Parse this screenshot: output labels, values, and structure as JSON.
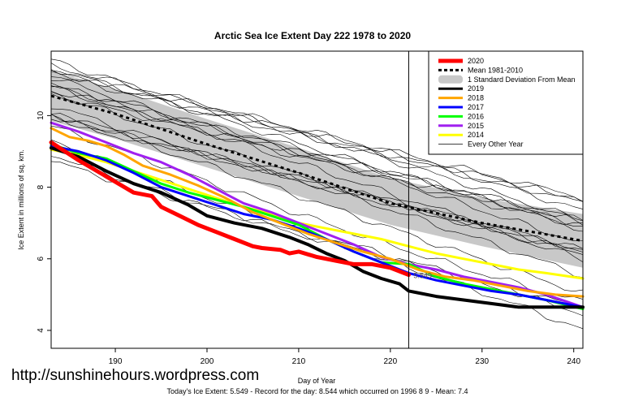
{
  "chart_data": {
    "type": "line",
    "title": "Arctic Sea Ice Extent Day 222 1978 to 2020",
    "xlabel": "Day of Year",
    "ylabel": "Ice Extent in millions of sq. km.",
    "xlim": [
      183,
      241
    ],
    "ylim": [
      3.5,
      11.8
    ],
    "xticks": [
      190,
      200,
      210,
      220,
      230,
      240
    ],
    "yticks": [
      4,
      6,
      8,
      10
    ],
    "current_day": 222,
    "current_value_label": "5.549",
    "legend_position": "top-right",
    "grid": false,
    "legend": [
      {
        "label": "2020",
        "color": "#ff0000",
        "style": "thick"
      },
      {
        "label": "Mean 1981-2010",
        "color": "#000000",
        "style": "dotted"
      },
      {
        "label": "1 Standard Deviation From Mean",
        "color": "#bdbdbd",
        "style": "band"
      },
      {
        "label": "2019",
        "color": "#000000",
        "style": "thick"
      },
      {
        "label": "2018",
        "color": "#ffa500",
        "style": "thick"
      },
      {
        "label": "2017",
        "color": "#0000ff",
        "style": "thick"
      },
      {
        "label": "2016",
        "color": "#00ff00",
        "style": "thick"
      },
      {
        "label": "2015",
        "color": "#a020f0",
        "style": "thick"
      },
      {
        "label": "2014",
        "color": "#ffff00",
        "style": "thick"
      },
      {
        "label": "Every Other Year",
        "color": "#000000",
        "style": "thin"
      }
    ],
    "mean_band": {
      "x": [
        183,
        190,
        200,
        210,
        220,
        230,
        241
      ],
      "mean": [
        10.55,
        10.05,
        9.2,
        8.4,
        7.55,
        7.0,
        6.5
      ],
      "upper": [
        11.25,
        10.75,
        9.9,
        9.1,
        8.25,
        7.7,
        7.25
      ],
      "lower": [
        9.85,
        9.35,
        8.55,
        7.75,
        6.95,
        6.35,
        5.75
      ]
    },
    "series": [
      {
        "name": "2020",
        "color": "#ff0000",
        "width": 5,
        "x": [
          183,
          186,
          189,
          190,
          192,
          194,
          195,
          197,
          199,
          201,
          203,
          205,
          206,
          208,
          209,
          210,
          212,
          214,
          216,
          218,
          220,
          222
        ],
        "y": [
          9.25,
          8.75,
          8.3,
          8.15,
          7.85,
          7.75,
          7.45,
          7.2,
          6.95,
          6.75,
          6.55,
          6.35,
          6.3,
          6.25,
          6.15,
          6.2,
          6.05,
          5.95,
          5.85,
          5.85,
          5.75,
          5.55
        ]
      },
      {
        "name": "2019",
        "color": "#000000",
        "width": 4,
        "x": [
          183,
          186,
          189,
          192,
          195,
          198,
          200,
          203,
          206,
          209,
          211,
          213,
          215,
          217,
          219,
          221,
          222,
          225,
          228,
          231,
          234,
          237,
          241
        ],
        "y": [
          9.1,
          8.85,
          8.45,
          8.1,
          7.85,
          7.5,
          7.2,
          7.0,
          6.85,
          6.6,
          6.4,
          6.15,
          5.95,
          5.65,
          5.45,
          5.3,
          5.1,
          4.95,
          4.85,
          4.75,
          4.65,
          4.65,
          4.65
        ]
      },
      {
        "name": "2018",
        "color": "#ffa500",
        "width": 3,
        "x": [
          183,
          185,
          187,
          189,
          191,
          193,
          196,
          199,
          202,
          205,
          208,
          211,
          214,
          217,
          220,
          223,
          226,
          229,
          232,
          235,
          238,
          241
        ],
        "y": [
          9.65,
          9.4,
          9.3,
          9.15,
          8.9,
          8.6,
          8.35,
          8.05,
          7.7,
          7.3,
          7.0,
          6.7,
          6.45,
          6.2,
          6.0,
          5.7,
          5.5,
          5.4,
          5.25,
          5.1,
          5.0,
          4.95
        ]
      },
      {
        "name": "2017",
        "color": "#0000ff",
        "width": 3,
        "x": [
          183,
          186,
          189,
          192,
          195,
          198,
          201,
          204,
          207,
          210,
          213,
          216,
          219,
          222,
          225,
          228,
          231,
          234,
          237,
          241
        ],
        "y": [
          9.15,
          9.0,
          8.75,
          8.4,
          8.0,
          7.75,
          7.5,
          7.25,
          7.1,
          6.85,
          6.55,
          6.2,
          5.9,
          5.6,
          5.4,
          5.25,
          5.1,
          5.0,
          4.85,
          4.65
        ]
      },
      {
        "name": "2016",
        "color": "#00ff00",
        "width": 3,
        "x": [
          183,
          186,
          189,
          192,
          195,
          198,
          201,
          204,
          207,
          210,
          213,
          216,
          219,
          222,
          225,
          228,
          231,
          234,
          237,
          241
        ],
        "y": [
          9.2,
          8.95,
          8.8,
          8.45,
          8.1,
          7.85,
          7.65,
          7.45,
          7.2,
          6.95,
          6.55,
          6.2,
          5.9,
          5.85,
          5.5,
          5.3,
          5.15,
          5.0,
          4.85,
          4.6
        ]
      },
      {
        "name": "2015",
        "color": "#a020f0",
        "width": 3,
        "x": [
          183,
          186,
          189,
          192,
          195,
          198,
          201,
          204,
          207,
          210,
          213,
          216,
          219,
          222,
          225,
          228,
          231,
          234,
          237,
          241
        ],
        "y": [
          9.8,
          9.55,
          9.25,
          8.95,
          8.7,
          8.35,
          7.95,
          7.55,
          7.3,
          7.0,
          6.7,
          6.4,
          6.05,
          5.85,
          5.7,
          5.5,
          5.35,
          5.2,
          5.0,
          4.65
        ]
      },
      {
        "name": "2014",
        "color": "#ffff00",
        "width": 3,
        "x": [
          183,
          186,
          189,
          192,
          195,
          198,
          201,
          204,
          207,
          210,
          213,
          216,
          219,
          222,
          225,
          228,
          231,
          234,
          237,
          241
        ],
        "y": [
          9.05,
          8.9,
          8.7,
          8.45,
          8.2,
          7.95,
          7.7,
          7.45,
          7.25,
          7.0,
          6.85,
          6.7,
          6.55,
          6.35,
          6.15,
          6.0,
          5.85,
          5.7,
          5.6,
          5.45
        ]
      }
    ],
    "thin_years": [
      {
        "start": 11.55,
        "end": 7.6
      },
      {
        "start": 11.45,
        "end": 7.5
      },
      {
        "start": 11.35,
        "end": 7.4
      },
      {
        "start": 11.25,
        "end": 7.3
      },
      {
        "start": 11.2,
        "end": 7.25
      },
      {
        "start": 11.1,
        "end": 7.15
      },
      {
        "start": 11.0,
        "end": 7.0
      },
      {
        "start": 10.95,
        "end": 6.9
      },
      {
        "start": 10.85,
        "end": 6.8
      },
      {
        "start": 10.8,
        "end": 6.7
      },
      {
        "start": 10.7,
        "end": 6.55
      },
      {
        "start": 10.6,
        "end": 6.4
      },
      {
        "start": 10.5,
        "end": 6.3
      },
      {
        "start": 10.4,
        "end": 6.15
      },
      {
        "start": 10.3,
        "end": 6.0
      },
      {
        "start": 10.1,
        "end": 5.8
      },
      {
        "start": 9.95,
        "end": 5.6
      },
      {
        "start": 9.7,
        "end": 5.3
      },
      {
        "start": 9.5,
        "end": 5.0
      },
      {
        "start": 9.35,
        "end": 4.6
      },
      {
        "start": 9.2,
        "end": 4.2
      },
      {
        "start": 9.0,
        "end": 3.75
      }
    ]
  },
  "watermark": "http://sunshinehours.wordpress.com",
  "footer": "Today's Ice Extent: 5.549  - Record for the day: 8.544 which occurred on 1996 8 9  - Mean: 7.4"
}
